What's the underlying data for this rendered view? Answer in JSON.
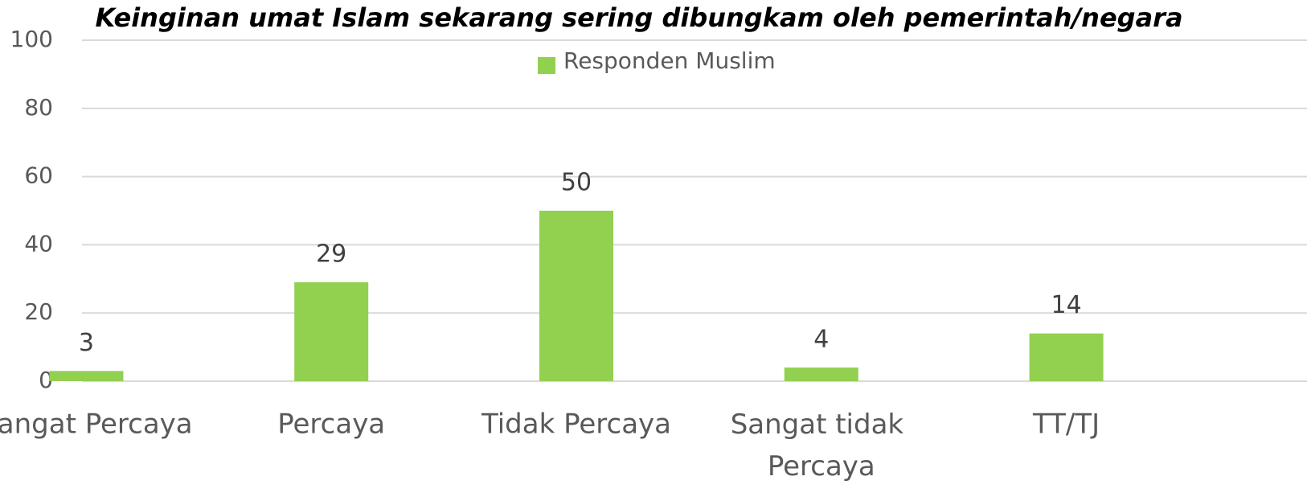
{
  "chart_data": {
    "type": "bar",
    "title": "Keinginan umat Islam sekarang sering dibungkam oleh pemerintah/negara",
    "categories": [
      "Sangat Percaya",
      "Percaya",
      "Tidak Percaya",
      "Sangat tidak Percaya",
      "TT/TJ"
    ],
    "series": [
      {
        "name": "Responden Muslim",
        "color": "#92d050",
        "values": [
          3,
          29,
          50,
          4,
          14
        ]
      }
    ],
    "ylim": [
      0,
      100
    ],
    "yticks": [
      0,
      20,
      40,
      60,
      80,
      100
    ],
    "grid": true,
    "legend": "top"
  }
}
